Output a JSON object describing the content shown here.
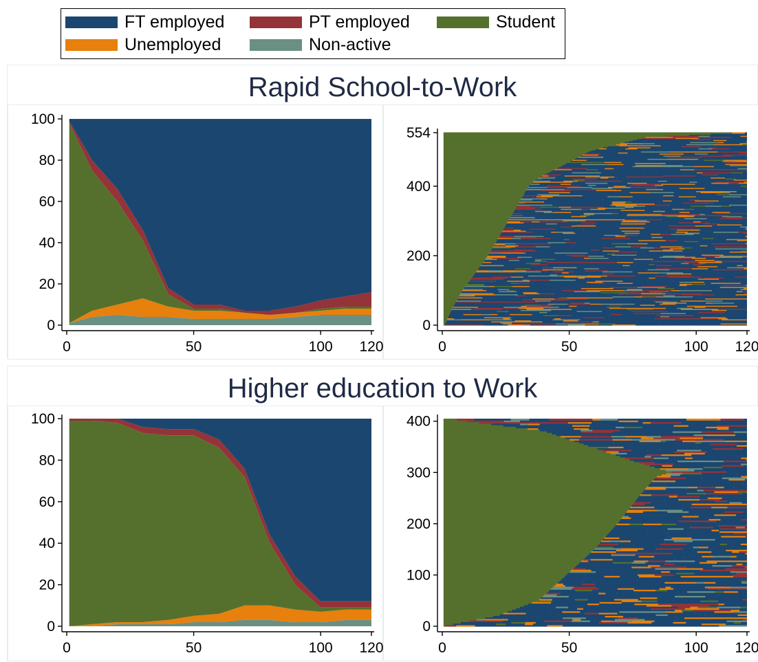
{
  "colors": {
    "ft_employed": "#1b4670",
    "pt_employed": "#943338",
    "student": "#55702c",
    "unemployed": "#e7800c",
    "non_active": "#6a8f83",
    "title": "#1f2a44"
  },
  "legend": [
    {
      "key": "ft_employed",
      "label": "FT employed"
    },
    {
      "key": "pt_employed",
      "label": "PT employed"
    },
    {
      "key": "student",
      "label": "Student"
    },
    {
      "key": "unemployed",
      "label": "Unemployed"
    },
    {
      "key": "non_active",
      "label": "Non-active"
    }
  ],
  "chart_data": [
    {
      "type": "area",
      "panel": "Rapid School-to-Work",
      "title": "Rapid School-to-Work",
      "xlim": [
        0,
        120
      ],
      "ylim": [
        0,
        100
      ],
      "x_ticks": [
        0,
        50,
        100,
        120
      ],
      "y_ticks": [
        0,
        20,
        40,
        60,
        80,
        100
      ],
      "stacked": true,
      "x": [
        1,
        10,
        20,
        30,
        40,
        50,
        60,
        70,
        80,
        90,
        100,
        110,
        120
      ],
      "series": [
        {
          "name": "Non-active",
          "color_key": "non_active",
          "values": [
            1,
            4,
            5,
            4,
            4,
            3,
            3,
            3,
            3,
            4,
            5,
            5,
            5
          ]
        },
        {
          "name": "Unemployed",
          "color_key": "unemployed",
          "values": [
            0,
            3,
            5,
            9,
            5,
            4,
            4,
            3,
            2,
            2,
            2,
            3,
            3
          ]
        },
        {
          "name": "Student",
          "color_key": "student",
          "values": [
            97,
            68,
            50,
            28,
            6,
            1,
            1,
            0,
            0,
            0,
            1,
            1,
            1
          ]
        },
        {
          "name": "PT employed",
          "color_key": "pt_employed",
          "values": [
            1,
            5,
            6,
            5,
            3,
            2,
            2,
            1,
            2,
            3,
            4,
            5,
            7
          ]
        },
        {
          "name": "FT employed",
          "color_key": "ft_employed",
          "values": [
            1,
            20,
            34,
            54,
            82,
            90,
            90,
            93,
            93,
            91,
            88,
            86,
            84
          ]
        }
      ]
    },
    {
      "type": "heatmap",
      "panel": "Rapid School-to-Work",
      "subtype": "sequence index plot",
      "xlim": [
        0,
        120
      ],
      "ylim": [
        0,
        554
      ],
      "x_ticks": [
        0,
        50,
        100,
        120
      ],
      "y_ticks": [
        0,
        200,
        400,
        554
      ],
      "n_sequences": 554,
      "student_exit_curve": {
        "y": [
          0,
          50,
          100,
          150,
          200,
          250,
          300,
          350,
          400,
          420,
          450,
          500,
          540,
          554
        ],
        "x": [
          1,
          4,
          8,
          13,
          18,
          22,
          26,
          30,
          34,
          37,
          45,
          58,
          80,
          120
        ]
      }
    },
    {
      "type": "area",
      "panel": "Higher education to Work",
      "title": "Higher education to Work",
      "xlim": [
        0,
        120
      ],
      "ylim": [
        0,
        100
      ],
      "x_ticks": [
        0,
        50,
        100,
        120
      ],
      "y_ticks": [
        0,
        20,
        40,
        60,
        80,
        100
      ],
      "stacked": true,
      "x": [
        1,
        10,
        20,
        30,
        40,
        50,
        60,
        70,
        80,
        90,
        100,
        110,
        120
      ],
      "series": [
        {
          "name": "Non-active",
          "color_key": "non_active",
          "values": [
            0,
            0,
            1,
            1,
            1,
            2,
            2,
            3,
            3,
            2,
            2,
            3,
            3
          ]
        },
        {
          "name": "Unemployed",
          "color_key": "unemployed",
          "values": [
            0,
            1,
            1,
            1,
            2,
            3,
            4,
            7,
            7,
            6,
            5,
            5,
            5
          ]
        },
        {
          "name": "Student",
          "color_key": "student",
          "values": [
            99,
            98,
            96,
            91,
            89,
            87,
            80,
            62,
            30,
            12,
            2,
            1,
            1
          ]
        },
        {
          "name": "PT employed",
          "color_key": "pt_employed",
          "values": [
            1,
            1,
            2,
            3,
            3,
            3,
            4,
            4,
            4,
            4,
            3,
            3,
            3
          ]
        },
        {
          "name": "FT employed",
          "color_key": "ft_employed",
          "values": [
            0,
            0,
            0,
            4,
            5,
            5,
            10,
            24,
            56,
            76,
            88,
            88,
            88
          ]
        }
      ]
    },
    {
      "type": "heatmap",
      "panel": "Higher education to Work",
      "subtype": "sequence index plot",
      "xlim": [
        0,
        120
      ],
      "ylim": [
        0,
        405
      ],
      "x_ticks": [
        0,
        50,
        100,
        120
      ],
      "y_ticks": [
        0,
        100,
        200,
        300,
        400
      ],
      "n_sequences": 405,
      "student_exit_curve": {
        "y": [
          0,
          20,
          50,
          100,
          150,
          200,
          250,
          290,
          300,
          320,
          350,
          380,
          400,
          405
        ],
        "x": [
          1,
          22,
          38,
          49,
          60,
          69,
          77,
          84,
          90,
          76,
          58,
          40,
          8,
          2
        ]
      }
    }
  ],
  "panels": {
    "top_title": "Rapid School-to-Work",
    "bottom_title": "Higher education to Work"
  }
}
